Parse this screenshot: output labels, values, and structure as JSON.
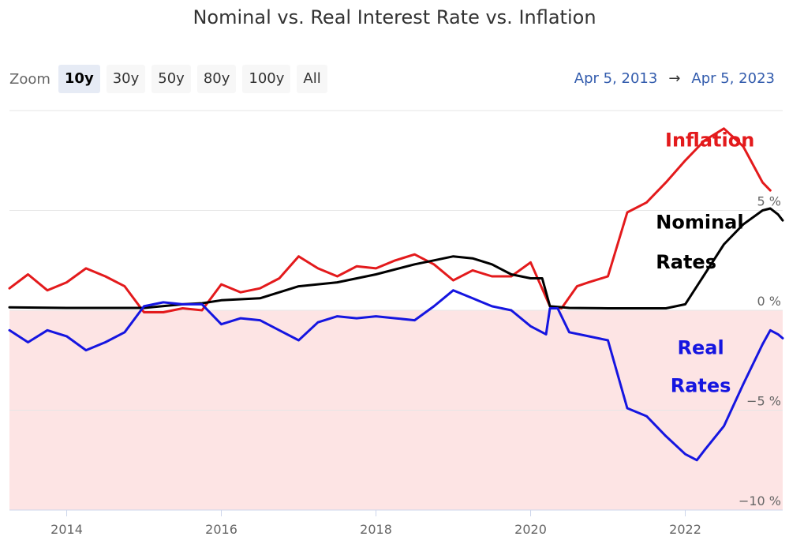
{
  "title": "Nominal vs. Real Interest Rate vs. Inflation",
  "zoom": {
    "label": "Zoom",
    "buttons": [
      "10y",
      "30y",
      "50y",
      "80y",
      "100y",
      "All"
    ],
    "active": "10y"
  },
  "range": {
    "from": "Apr 5, 2013",
    "arrow": "→",
    "to": "Apr 5, 2023"
  },
  "colors": {
    "inflation": "#e31a1c",
    "nominal": "#000000",
    "real": "#1515e0",
    "negative_band": "#fde4e4"
  },
  "annotations": [
    {
      "text": "Inflation",
      "color": "#e31a1c"
    },
    {
      "text": "Nominal",
      "color": "#000000"
    },
    {
      "text": "Rates",
      "color": "#000000"
    },
    {
      "text": "Real",
      "color": "#1515e0"
    },
    {
      "text": "Rates",
      "color": "#1515e0"
    }
  ],
  "chart_data": {
    "type": "line",
    "title": "Nominal vs. Real Interest Rate vs. Inflation",
    "xlabel": "",
    "ylabel": "",
    "x_ticks": [
      "2014",
      "2016",
      "2018",
      "2020",
      "2022"
    ],
    "y_ticks": [
      "5 %",
      "0 %",
      "−5 %",
      "−10 %"
    ],
    "xlim": [
      2013.26,
      2023.26
    ],
    "ylim": [
      -10,
      10
    ],
    "grid": true,
    "negative_region_shaded": true,
    "series": [
      {
        "name": "Inflation",
        "x": [
          2013.26,
          2013.5,
          2013.75,
          2014.0,
          2014.25,
          2014.5,
          2014.75,
          2015.0,
          2015.25,
          2015.5,
          2015.75,
          2016.0,
          2016.25,
          2016.5,
          2016.75,
          2017.0,
          2017.25,
          2017.5,
          2017.75,
          2018.0,
          2018.25,
          2018.5,
          2018.75,
          2019.0,
          2019.25,
          2019.5,
          2019.75,
          2020.0,
          2020.25,
          2020.4,
          2020.6,
          2020.75,
          2021.0,
          2021.25,
          2021.5,
          2021.75,
          2022.0,
          2022.25,
          2022.5,
          2022.75,
          2023.0,
          2023.1
        ],
        "values": [
          1.1,
          1.8,
          1.0,
          1.4,
          2.1,
          1.7,
          1.2,
          -0.1,
          -0.1,
          0.1,
          0.0,
          1.3,
          0.9,
          1.1,
          1.6,
          2.7,
          2.1,
          1.7,
          2.2,
          2.1,
          2.5,
          2.8,
          2.3,
          1.5,
          2.0,
          1.7,
          1.7,
          2.4,
          0.2,
          0.1,
          1.2,
          1.4,
          1.7,
          4.9,
          5.4,
          6.4,
          7.5,
          8.5,
          9.1,
          8.2,
          6.4,
          6.0
        ]
      },
      {
        "name": "Nominal Rates",
        "x": [
          2013.26,
          2014.0,
          2014.5,
          2015.0,
          2015.5,
          2015.75,
          2016.0,
          2016.5,
          2017.0,
          2017.5,
          2018.0,
          2018.5,
          2018.75,
          2019.0,
          2019.25,
          2019.5,
          2019.75,
          2020.0,
          2020.15,
          2020.25,
          2020.5,
          2021.0,
          2021.5,
          2021.75,
          2022.0,
          2022.25,
          2022.5,
          2022.75,
          2023.0,
          2023.1,
          2023.2,
          2023.26
        ],
        "values": [
          0.15,
          0.12,
          0.12,
          0.12,
          0.3,
          0.35,
          0.5,
          0.6,
          1.2,
          1.4,
          1.8,
          2.3,
          2.5,
          2.7,
          2.6,
          2.3,
          1.8,
          1.6,
          1.6,
          0.2,
          0.12,
          0.1,
          0.1,
          0.1,
          0.3,
          1.8,
          3.3,
          4.3,
          5.0,
          5.1,
          4.8,
          4.5
        ]
      },
      {
        "name": "Real Rates",
        "x": [
          2013.26,
          2013.5,
          2013.75,
          2014.0,
          2014.25,
          2014.5,
          2014.75,
          2015.0,
          2015.25,
          2015.5,
          2015.75,
          2016.0,
          2016.25,
          2016.5,
          2016.75,
          2017.0,
          2017.25,
          2017.5,
          2017.75,
          2018.0,
          2018.25,
          2018.5,
          2018.75,
          2019.0,
          2019.25,
          2019.5,
          2019.75,
          2020.0,
          2020.2,
          2020.25,
          2020.35,
          2020.5,
          2020.75,
          2021.0,
          2021.25,
          2021.5,
          2021.75,
          2022.0,
          2022.15,
          2022.25,
          2022.5,
          2022.75,
          2023.0,
          2023.1,
          2023.2,
          2023.26
        ],
        "values": [
          -1.0,
          -1.6,
          -1.0,
          -1.3,
          -2.0,
          -1.6,
          -1.1,
          0.2,
          0.4,
          0.3,
          0.3,
          -0.7,
          -0.4,
          -0.5,
          -1.0,
          -1.5,
          -0.6,
          -0.3,
          -0.4,
          -0.3,
          -0.4,
          -0.5,
          0.2,
          1.0,
          0.6,
          0.2,
          0.0,
          -0.8,
          -1.2,
          0.1,
          0.1,
          -1.1,
          -1.3,
          -1.5,
          -4.9,
          -5.3,
          -6.3,
          -7.2,
          -7.5,
          -7.0,
          -5.8,
          -3.7,
          -1.7,
          -1.0,
          -1.2,
          -1.4
        ]
      }
    ]
  }
}
